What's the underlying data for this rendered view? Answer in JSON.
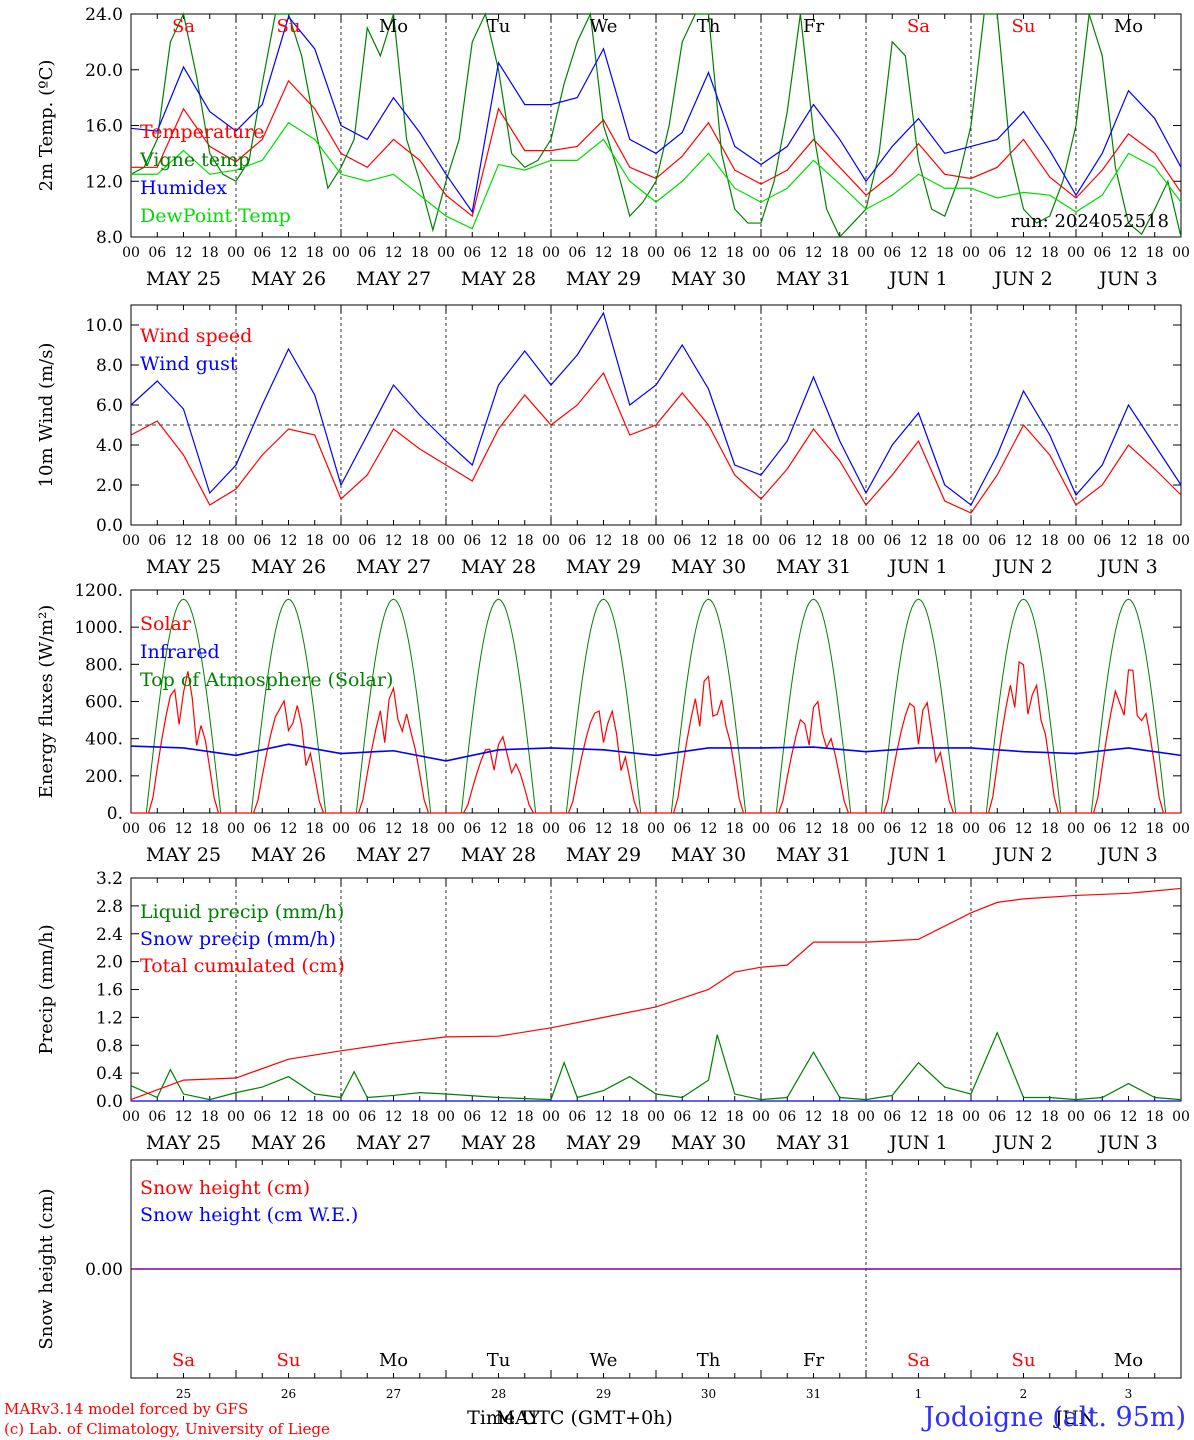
{
  "run_label": "run: 2024052518",
  "hour_ticks": [
    "00",
    "06",
    "12",
    "18"
  ],
  "date_labels": [
    "MAY 25",
    "MAY 26",
    "MAY 27",
    "MAY 28",
    "MAY 29",
    "MAY 30",
    "MAY 31",
    "JUN  1",
    "JUN  2",
    "JUN  3"
  ],
  "weekdays": [
    {
      "label": "Sa",
      "color": "#ff0000"
    },
    {
      "label": "Su",
      "color": "#ff0000"
    },
    {
      "label": "Mo",
      "color": "#000000"
    },
    {
      "label": "Tu",
      "color": "#000000"
    },
    {
      "label": "We",
      "color": "#000000"
    },
    {
      "label": "Th",
      "color": "#000000"
    },
    {
      "label": "Fr",
      "color": "#000000"
    },
    {
      "label": "Sa",
      "color": "#ff0000"
    },
    {
      "label": "Su",
      "color": "#ff0000"
    },
    {
      "label": "Mo",
      "color": "#000000"
    }
  ],
  "day_numbers": [
    "25",
    "26",
    "27",
    "28",
    "29",
    "30",
    "31",
    "1",
    "2",
    "3"
  ],
  "bottom_axis": {
    "time_label": "Time UTC (GMT+0h)",
    "month_label": "MAY",
    "month_label_2": "JUN"
  },
  "footer": {
    "model": "MARv3.14 model forced by GFS",
    "lab": "(c) Lab. of Climatology, University of Liege",
    "station": "Jodoigne (alt. 95m)"
  },
  "colors": {
    "red": "#ff0000",
    "blue": "#0000ff",
    "green": "#008000",
    "lightgreen": "#00dd00",
    "purple": "#8000a0"
  },
  "chart_data": [
    {
      "type": "line",
      "ylabel": "2m Temp. (ºC)",
      "ylim": [
        8,
        24
      ],
      "yticks": [
        "8.0",
        "12.0",
        "16.0",
        "20.0",
        "24.0"
      ],
      "ytick_values": [
        8,
        12,
        16,
        20,
        24
      ],
      "x_unit": "hours since 2024-05-25 00 UTC",
      "x_range": [
        0,
        240
      ],
      "series": [
        {
          "name": "Temperature",
          "color": "#ff0000",
          "x": [
            0,
            6,
            12,
            18,
            24,
            30,
            36,
            42,
            48,
            54,
            60,
            66,
            72,
            78,
            84,
            90,
            96,
            102,
            108,
            114,
            120,
            126,
            132,
            138,
            144,
            150,
            156,
            162,
            168,
            174,
            180,
            186,
            192,
            198,
            204,
            210,
            216,
            222,
            228,
            234,
            240
          ],
          "values": [
            13.0,
            13.0,
            17.2,
            14.5,
            13.4,
            15.0,
            19.2,
            17.2,
            14.0,
            13.0,
            15.0,
            13.5,
            11.0,
            9.5,
            17.2,
            14.2,
            14.2,
            14.5,
            16.4,
            13.0,
            12.2,
            13.8,
            16.2,
            12.8,
            11.8,
            12.8,
            15.0,
            13.0,
            11.0,
            12.5,
            14.7,
            12.5,
            12.2,
            13.0,
            15.0,
            12.3,
            10.8,
            12.8,
            15.4,
            14.0,
            11.2
          ]
        },
        {
          "name": "Vigne temp",
          "color": "#008000",
          "x": [
            0,
            3,
            6,
            9,
            12,
            15,
            18,
            21,
            24,
            27,
            30,
            33,
            36,
            39,
            42,
            45,
            48,
            51,
            54,
            57,
            60,
            63,
            66,
            69,
            72,
            75,
            78,
            81,
            84,
            87,
            90,
            93,
            96,
            99,
            102,
            105,
            108,
            111,
            114,
            117,
            120,
            123,
            126,
            129,
            132,
            135,
            138,
            141,
            144,
            147,
            150,
            153,
            156,
            159,
            162,
            165,
            168,
            171,
            174,
            177,
            180,
            183,
            186,
            189,
            192,
            195,
            198,
            201,
            204,
            207,
            210,
            213,
            216,
            219,
            222,
            225,
            228,
            231,
            234,
            237,
            240
          ],
          "values": [
            12.5,
            13.0,
            15.0,
            22.0,
            24.0,
            19.5,
            14.0,
            12.5,
            12.0,
            13.5,
            19.0,
            24.0,
            24.0,
            21.0,
            16.0,
            11.5,
            13.0,
            15.0,
            23.0,
            21.0,
            24.0,
            15.0,
            12.0,
            8.5,
            12.0,
            15.0,
            22.0,
            24.0,
            20.0,
            14.0,
            13.0,
            13.5,
            15.0,
            19.0,
            22.0,
            24.0,
            16.0,
            13.0,
            9.5,
            10.5,
            12.0,
            16.0,
            22.0,
            24.0,
            24.0,
            14.0,
            10.0,
            9.0,
            9.0,
            12.0,
            17.0,
            24.0,
            15.5,
            10.0,
            8.0,
            9.0,
            10.0,
            14.0,
            22.0,
            21.0,
            13.5,
            10.0,
            9.5,
            12.0,
            16.0,
            24.0,
            24.0,
            14.0,
            10.0,
            9.0,
            9.5,
            12.0,
            16.0,
            24.0,
            21.0,
            13.0,
            9.0,
            8.2,
            10.0,
            12.0,
            8.0
          ]
        },
        {
          "name": "Humidex",
          "color": "#0000ff",
          "x": [
            0,
            6,
            12,
            18,
            24,
            30,
            36,
            42,
            48,
            54,
            60,
            66,
            72,
            78,
            84,
            90,
            96,
            102,
            108,
            114,
            120,
            126,
            132,
            138,
            144,
            150,
            156,
            162,
            168,
            174,
            180,
            186,
            192,
            198,
            204,
            210,
            216,
            222,
            228,
            234,
            240
          ],
          "values": [
            15.8,
            15.6,
            20.2,
            17.0,
            15.6,
            17.5,
            23.8,
            21.5,
            16.0,
            15.0,
            18.0,
            15.5,
            12.5,
            9.8,
            20.5,
            17.5,
            17.5,
            18.0,
            21.5,
            15.0,
            14.0,
            15.5,
            19.8,
            14.5,
            13.2,
            14.5,
            17.5,
            15.0,
            12.0,
            14.5,
            16.5,
            14.0,
            14.5,
            15.0,
            17.0,
            14.2,
            11.0,
            14.0,
            18.5,
            16.5,
            13.0
          ]
        },
        {
          "name": "DewPoint Temp",
          "color": "#00dd00",
          "x": [
            0,
            6,
            12,
            18,
            24,
            30,
            36,
            42,
            48,
            54,
            60,
            66,
            72,
            78,
            84,
            90,
            96,
            102,
            108,
            114,
            120,
            126,
            132,
            138,
            144,
            150,
            156,
            162,
            168,
            174,
            180,
            186,
            192,
            198,
            204,
            210,
            216,
            222,
            228,
            234,
            240
          ],
          "values": [
            12.5,
            12.5,
            14.2,
            12.5,
            12.8,
            13.5,
            16.2,
            15.0,
            12.5,
            12.0,
            12.5,
            11.0,
            9.5,
            8.6,
            13.2,
            12.8,
            13.5,
            13.5,
            15.0,
            12.0,
            10.5,
            12.0,
            14.0,
            11.5,
            10.5,
            11.5,
            13.5,
            11.8,
            10.0,
            11.0,
            12.5,
            11.5,
            11.5,
            10.8,
            11.2,
            11.0,
            9.8,
            11.0,
            14.0,
            13.0,
            10.5
          ]
        }
      ]
    },
    {
      "type": "line",
      "ylabel": "10m Wind (m/s)",
      "ylim": [
        0,
        11
      ],
      "yticks": [
        "0.0",
        "2.0",
        "4.0",
        "6.0",
        "8.0",
        "10.0"
      ],
      "ytick_values": [
        0,
        2,
        4,
        6,
        8,
        10
      ],
      "reference_line": 5,
      "x_range": [
        0,
        240
      ],
      "series": [
        {
          "name": "Wind speed",
          "color": "#ff0000",
          "x": [
            0,
            6,
            12,
            18,
            24,
            30,
            36,
            42,
            48,
            54,
            60,
            66,
            72,
            78,
            84,
            90,
            96,
            102,
            108,
            114,
            120,
            126,
            132,
            138,
            144,
            150,
            156,
            162,
            168,
            174,
            180,
            186,
            192,
            198,
            204,
            210,
            216,
            222,
            228,
            234,
            240
          ],
          "values": [
            4.5,
            5.2,
            3.5,
            1.0,
            1.8,
            3.5,
            4.8,
            4.5,
            1.3,
            2.5,
            4.8,
            3.8,
            3.0,
            2.2,
            4.8,
            6.5,
            5.0,
            6.0,
            7.6,
            4.5,
            5.0,
            6.6,
            5.0,
            2.5,
            1.3,
            2.8,
            4.8,
            3.2,
            1.0,
            2.5,
            4.2,
            1.2,
            0.6,
            2.5,
            5.0,
            3.5,
            1.0,
            2.0,
            4.0,
            2.8,
            1.5
          ]
        },
        {
          "name": "Wind gust",
          "color": "#0000ff",
          "x": [
            0,
            6,
            12,
            18,
            24,
            30,
            36,
            42,
            48,
            54,
            60,
            66,
            72,
            78,
            84,
            90,
            96,
            102,
            108,
            114,
            120,
            126,
            132,
            138,
            144,
            150,
            156,
            162,
            168,
            174,
            180,
            186,
            192,
            198,
            204,
            210,
            216,
            222,
            228,
            234,
            240
          ],
          "values": [
            6.0,
            7.2,
            5.8,
            1.6,
            3.0,
            6.0,
            8.8,
            6.5,
            2.0,
            4.5,
            7.0,
            5.5,
            4.2,
            3.0,
            7.0,
            8.7,
            7.0,
            8.5,
            10.6,
            6.0,
            7.0,
            9.0,
            6.8,
            3.0,
            2.5,
            4.2,
            7.4,
            4.2,
            1.6,
            4.0,
            5.6,
            2.0,
            1.0,
            3.5,
            6.7,
            4.5,
            1.5,
            3.0,
            6.0,
            4.0,
            2.0
          ]
        }
      ]
    },
    {
      "type": "line",
      "ylabel": "Energy fluxes (W/m²)",
      "ylim": [
        0,
        1200
      ],
      "yticks": [
        "0.",
        "200.",
        "400.",
        "600.",
        "800.",
        "1000.",
        "1200."
      ],
      "ytick_values": [
        0,
        200,
        400,
        600,
        800,
        1000,
        1200
      ],
      "x_range": [
        0,
        240
      ],
      "series": [
        {
          "name": "Solar",
          "color": "#ff0000",
          "daily_peak": [
            780,
            640,
            680,
            420,
            600,
            760,
            620,
            650,
            850,
            810
          ]
        },
        {
          "name": "Infrared",
          "color": "#0000ff",
          "x": [
            0,
            12,
            24,
            36,
            48,
            60,
            72,
            84,
            96,
            108,
            120,
            132,
            144,
            156,
            168,
            180,
            192,
            204,
            216,
            228,
            240
          ],
          "values": [
            360,
            350,
            310,
            370,
            320,
            335,
            280,
            340,
            350,
            340,
            310,
            350,
            350,
            355,
            330,
            350,
            350,
            330,
            320,
            350,
            310
          ]
        },
        {
          "name": "Top of Atmosphere (Solar)",
          "color": "#008000",
          "daily_peak": 1150
        }
      ]
    },
    {
      "type": "line",
      "ylabel": "Precip (mm/h)",
      "ylim": [
        0,
        3.2
      ],
      "yticks": [
        "0.0",
        "0.4",
        "0.8",
        "1.2",
        "1.6",
        "2.0",
        "2.4",
        "2.8",
        "3.2"
      ],
      "ytick_values": [
        0,
        0.4,
        0.8,
        1.2,
        1.6,
        2.0,
        2.4,
        2.8,
        3.2
      ],
      "x_range": [
        0,
        240
      ],
      "series": [
        {
          "name": "Liquid precip (mm/h)",
          "color": "#008000",
          "x": [
            0,
            6,
            9,
            12,
            18,
            24,
            30,
            36,
            42,
            48,
            51,
            54,
            60,
            66,
            72,
            84,
            96,
            99,
            102,
            108,
            114,
            120,
            126,
            132,
            134,
            138,
            144,
            150,
            156,
            162,
            168,
            174,
            180,
            186,
            192,
            198,
            204,
            210,
            216,
            222,
            228,
            234,
            240
          ],
          "values": [
            0.22,
            0.05,
            0.45,
            0.1,
            0.02,
            0.12,
            0.2,
            0.35,
            0.1,
            0.05,
            0.42,
            0.05,
            0.08,
            0.12,
            0.1,
            0.05,
            0.02,
            0.55,
            0.05,
            0.15,
            0.35,
            0.1,
            0.05,
            0.3,
            0.95,
            0.1,
            0.02,
            0.05,
            0.7,
            0.05,
            0.02,
            0.08,
            0.55,
            0.2,
            0.1,
            0.98,
            0.05,
            0.05,
            0.02,
            0.05,
            0.25,
            0.05,
            0.02
          ]
        },
        {
          "name": "Snow precip (mm/h)",
          "color": "#0000ff",
          "x": [
            0,
            240
          ],
          "values": [
            0,
            0
          ]
        },
        {
          "name": "Total cumulated (cm)",
          "color": "#ff0000",
          "x": [
            0,
            12,
            24,
            36,
            48,
            60,
            72,
            84,
            96,
            108,
            120,
            132,
            138,
            144,
            150,
            156,
            168,
            180,
            192,
            198,
            204,
            216,
            228,
            240
          ],
          "values": [
            0.02,
            0.3,
            0.33,
            0.6,
            0.72,
            0.83,
            0.92,
            0.93,
            1.05,
            1.2,
            1.35,
            1.6,
            1.85,
            1.92,
            1.95,
            2.28,
            2.28,
            2.32,
            2.7,
            2.85,
            2.9,
            2.95,
            2.98,
            3.05
          ]
        }
      ]
    },
    {
      "type": "line",
      "ylabel": "Snow height (cm)",
      "ylim": [
        -1,
        1
      ],
      "yticks": [
        "0.00"
      ],
      "ytick_values": [
        0
      ],
      "x_range": [
        0,
        240
      ],
      "series": [
        {
          "name": "Snow height (cm)",
          "color": "#ff0000",
          "x": [
            0,
            240
          ],
          "values": [
            0,
            0
          ]
        },
        {
          "name": "Snow height (cm W.E.)",
          "color": "#0000ff",
          "x": [
            0,
            240
          ],
          "values": [
            0,
            0
          ]
        }
      ]
    }
  ]
}
